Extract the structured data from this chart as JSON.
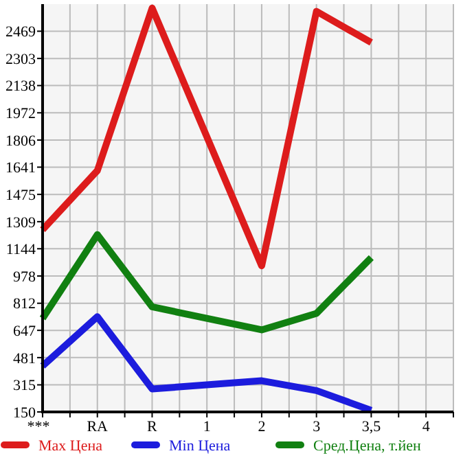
{
  "chart_data": {
    "type": "line",
    "categories": [
      "***",
      "RA",
      "R",
      "1",
      "2",
      "3",
      "3,5",
      "4"
    ],
    "series": [
      {
        "name": "Max Цена",
        "color": "#dd1c1c",
        "values": [
          1260,
          1620,
          2610,
          null,
          1040,
          2590,
          2400,
          null
        ]
      },
      {
        "name": "Min Цена",
        "color": "#1c1cdd",
        "values": [
          430,
          730,
          290,
          null,
          340,
          280,
          160,
          null
        ]
      },
      {
        "name": "Сред.Цена, т.йен",
        "color": "#118011",
        "values": [
          720,
          1230,
          790,
          null,
          650,
          750,
          1090,
          null
        ]
      }
    ],
    "ylim": [
      150,
      2634
    ],
    "yticks": [
      150,
      315,
      481,
      647,
      812,
      978,
      1144,
      1309,
      1475,
      1641,
      1806,
      1972,
      2138,
      2303,
      2469
    ],
    "grid": true,
    "legend": "bottom",
    "marker": "none",
    "line_style": "solid"
  }
}
